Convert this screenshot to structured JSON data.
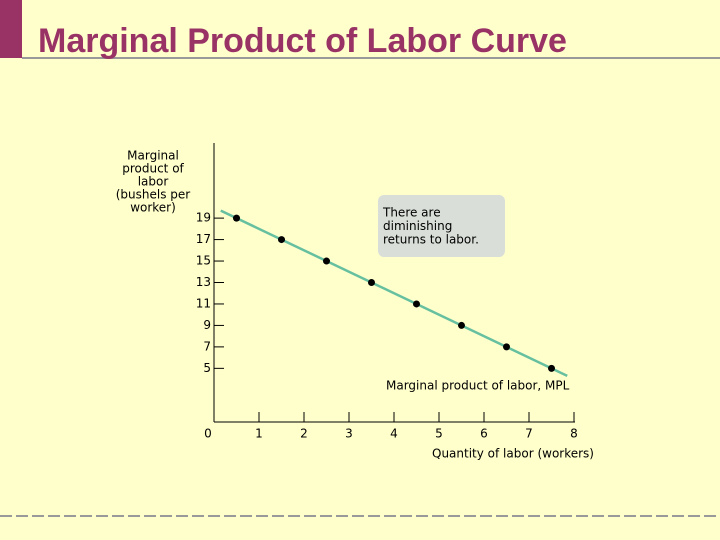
{
  "title": "Marginal Product of Labor Curve",
  "chart_data": {
    "type": "line",
    "y_label_lines": [
      "Marginal",
      "product of",
      "labor",
      "(bushels per",
      "worker)"
    ],
    "x_label": "Quantity of labor (workers)",
    "curve_label": "Marginal product of labor, MPL",
    "annotation_lines": [
      "There are",
      "diminishing",
      "returns to labor."
    ],
    "x": [
      0.5,
      1.5,
      2.5,
      3.5,
      4.5,
      5.5,
      6.5,
      7.5
    ],
    "series": [
      {
        "name": "Marginal product of labor, MPL",
        "color": "#000000",
        "line_color": "#66c0a0",
        "values": [
          19,
          17,
          15,
          13,
          11,
          9,
          7,
          5
        ]
      }
    ],
    "xlim": [
      0,
      8
    ],
    "ylim": [
      0,
      26
    ],
    "xticks": [
      0,
      1,
      2,
      3,
      4,
      5,
      6,
      7,
      8
    ],
    "yticks": [
      5,
      7,
      9,
      11,
      13,
      15,
      17,
      19
    ],
    "grid": false
  }
}
